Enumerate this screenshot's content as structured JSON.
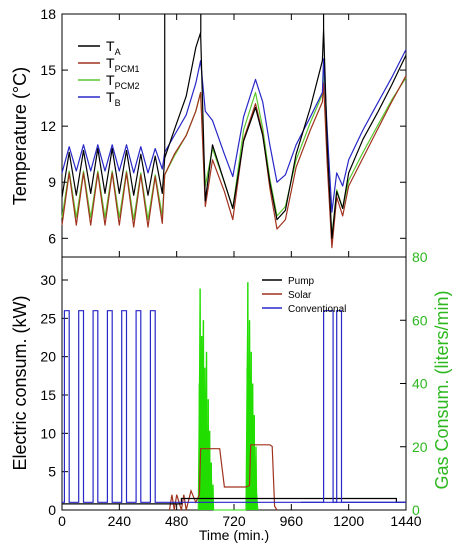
{
  "chart_data": [
    {
      "type": "line",
      "ylabel": "Temperature (°C)",
      "xlim": [
        0,
        1440
      ],
      "ylim": [
        5,
        18
      ],
      "yticks": [
        6,
        9,
        12,
        15,
        18
      ],
      "legend_position": "top-left",
      "colors": {
        "T_A": "#000000",
        "T_PCM1": "#a0321e",
        "T_PCM2": "#5ac82d",
        "T_B": "#2828c8"
      },
      "legend": [
        {
          "key": "T_A",
          "base": "T",
          "sub": "A"
        },
        {
          "key": "T_PCM1",
          "base": "T",
          "sub": "PCM1"
        },
        {
          "key": "T_PCM2",
          "base": "T",
          "sub": "PCM2"
        },
        {
          "key": "T_B",
          "base": "T",
          "sub": "B"
        }
      ],
      "series": {
        "T_A": {
          "x": [
            0,
            30,
            60,
            90,
            120,
            150,
            180,
            210,
            240,
            270,
            300,
            330,
            360,
            390,
            420,
            430,
            470,
            520,
            560,
            580,
            600,
            630,
            680,
            715,
            760,
            810,
            840,
            870,
            900,
            935,
            980,
            1040,
            1090,
            1095,
            1110,
            1130,
            1150,
            1175,
            1200,
            1260,
            1320,
            1380,
            1440
          ],
          "y": [
            8.2,
            10.6,
            8.3,
            10.7,
            8.4,
            10.8,
            8.4,
            10.8,
            8.4,
            10.7,
            8.3,
            10.5,
            8.3,
            10.4,
            8.4,
            10.3,
            11.8,
            13.6,
            16.2,
            17.0,
            8.0,
            11.0,
            9.0,
            7.6,
            11.2,
            13.0,
            11.5,
            9.0,
            7.0,
            7.5,
            10.5,
            13.0,
            15.5,
            17.2,
            11.0,
            6.0,
            8.5,
            7.6,
            9.5,
            11.3,
            12.7,
            14.2,
            15.8
          ]
        },
        "T_PCM1": {
          "x": [
            0,
            30,
            60,
            90,
            120,
            150,
            180,
            210,
            240,
            270,
            300,
            330,
            360,
            390,
            420,
            430,
            470,
            520,
            560,
            580,
            600,
            630,
            680,
            715,
            760,
            810,
            840,
            870,
            900,
            935,
            980,
            1040,
            1090,
            1095,
            1110,
            1130,
            1150,
            1175,
            1200,
            1260,
            1320,
            1380,
            1440
          ],
          "y": [
            6.7,
            9.5,
            6.7,
            9.5,
            6.7,
            9.5,
            6.7,
            9.5,
            6.7,
            9.5,
            6.6,
            9.4,
            6.6,
            9.3,
            6.8,
            9.4,
            10.5,
            11.5,
            12.8,
            13.8,
            7.7,
            10.2,
            8.5,
            7.0,
            11.3,
            13.2,
            11.6,
            8.7,
            6.5,
            7.0,
            9.8,
            11.8,
            13.3,
            14.3,
            10.0,
            5.5,
            8.2,
            7.2,
            8.8,
            10.3,
            11.8,
            13.3,
            14.7
          ]
        },
        "T_PCM2": {
          "x": [
            0,
            30,
            60,
            90,
            120,
            150,
            180,
            210,
            240,
            270,
            300,
            330,
            360,
            390,
            420,
            430,
            470,
            520,
            560,
            580,
            600,
            630,
            680,
            715,
            760,
            810,
            840,
            870,
            900,
            935,
            980,
            1040,
            1090,
            1095,
            1110,
            1130,
            1150,
            1175,
            1200,
            1260,
            1320,
            1380,
            1440
          ],
          "y": [
            7.1,
            9.6,
            7.1,
            9.6,
            7.1,
            9.6,
            7.1,
            9.6,
            7.1,
            9.6,
            7.0,
            9.5,
            7.0,
            9.4,
            7.2,
            9.4,
            10.4,
            11.5,
            12.8,
            13.8,
            8.8,
            10.8,
            9.0,
            7.6,
            11.8,
            13.8,
            11.9,
            9.2,
            7.2,
            7.7,
            10.2,
            12.2,
            13.7,
            14.8,
            10.4,
            6.1,
            8.6,
            7.6,
            9.1,
            10.6,
            12.0,
            13.4,
            14.6
          ]
        },
        "T_B": {
          "x": [
            0,
            30,
            60,
            90,
            120,
            150,
            180,
            210,
            240,
            270,
            300,
            330,
            360,
            390,
            420,
            430,
            470,
            520,
            560,
            580,
            600,
            630,
            680,
            715,
            760,
            810,
            840,
            870,
            900,
            935,
            980,
            1040,
            1090,
            1095,
            1110,
            1130,
            1150,
            1175,
            1200,
            1260,
            1320,
            1380,
            1440
          ],
          "y": [
            9.5,
            10.9,
            9.6,
            11.0,
            9.6,
            11.0,
            9.6,
            11.0,
            9.6,
            11.0,
            9.5,
            10.9,
            9.5,
            10.8,
            9.7,
            10.6,
            11.5,
            12.6,
            14.3,
            15.5,
            12.8,
            12.3,
            10.5,
            9.3,
            12.5,
            14.5,
            13.3,
            11.0,
            9.0,
            9.4,
            11.0,
            12.5,
            13.8,
            15.6,
            11.8,
            7.4,
            9.5,
            8.8,
            10.2,
            11.8,
            13.2,
            14.6,
            16.1
          ]
        }
      }
    },
    {
      "type": "line",
      "xlabel": "Time (min.)",
      "ylabel": "Electric consum. (kW)",
      "ylabel_right": "Gas Consum. (liters/min)",
      "xlim": [
        0,
        1440
      ],
      "ylim": [
        0,
        33
      ],
      "ylim_right": [
        0,
        80
      ],
      "xticks": [
        0,
        240,
        480,
        720,
        960,
        1200,
        1440
      ],
      "yticks": [
        0,
        5,
        10,
        15,
        20,
        25,
        30
      ],
      "yticks_right": [
        0,
        20,
        40,
        60,
        80
      ],
      "legend_position": "top-right",
      "colors": {
        "Pump": "#000000",
        "Solar": "#a0321e",
        "Conventional": "#2828c8",
        "Gas": "#22dd00"
      },
      "legend": [
        {
          "key": "Pump",
          "label": "Pump"
        },
        {
          "key": "Solar",
          "label": "Solar"
        },
        {
          "key": "Conventional",
          "label": "Conventional"
        }
      ],
      "series": {
        "Conventional": {
          "x": [
            0,
            10,
            10,
            30,
            30,
            70,
            70,
            90,
            90,
            130,
            130,
            150,
            150,
            190,
            190,
            210,
            210,
            250,
            250,
            270,
            270,
            310,
            310,
            330,
            330,
            370,
            370,
            390,
            390,
            1440
          ],
          "y": [
            1,
            1,
            26,
            26,
            1,
            1,
            26,
            26,
            1,
            1,
            26,
            26,
            1,
            1,
            26,
            26,
            1,
            1,
            26,
            26,
            1,
            1,
            26,
            26,
            1,
            1,
            26,
            26,
            1,
            1
          ]
        },
        "Conventional_b": {
          "x": [
            1000,
            1095,
            1095,
            1135,
            1135,
            1150,
            1150,
            1170,
            1170,
            1440
          ],
          "y": [
            1,
            1,
            26,
            26,
            1,
            1,
            26,
            26,
            1,
            1
          ]
        },
        "Pump": {
          "x": [
            0,
            500,
            500,
            1400,
            1400,
            1440
          ],
          "y": [
            0.8,
            0.8,
            1.5,
            1.5,
            1.0,
            1.0
          ]
        },
        "Solar": {
          "x": [
            450,
            460,
            470,
            480,
            500,
            510,
            520,
            540,
            560,
            575,
            580,
            600,
            620,
            660,
            680,
            700,
            720,
            740,
            770,
            785,
            790,
            800,
            820,
            850,
            870,
            880,
            890,
            900
          ],
          "y": [
            0,
            2,
            0,
            2,
            0,
            2,
            0,
            2.5,
            1.0,
            2.0,
            8.0,
            8.0,
            8.0,
            8.0,
            3.0,
            3.0,
            3.0,
            3.0,
            3.0,
            3.2,
            8.5,
            8.5,
            8.5,
            8.5,
            8.5,
            8.3,
            0.5,
            0
          ]
        },
        "Gas": {
          "x": [
            570,
            575,
            578,
            582,
            585,
            588,
            592,
            595,
            598,
            602,
            605,
            608,
            612,
            615,
            618,
            622,
            625,
            628,
            632,
            635,
            640,
            770,
            775,
            778,
            782,
            785,
            788,
            792,
            795,
            798,
            802,
            805,
            808,
            812,
            815,
            820
          ],
          "y": [
            0,
            40,
            70,
            10,
            55,
            30,
            60,
            5,
            45,
            20,
            50,
            2,
            35,
            10,
            25,
            0,
            15,
            3,
            8,
            0,
            0,
            0,
            45,
            72,
            5,
            60,
            25,
            50,
            5,
            40,
            18,
            30,
            2,
            20,
            5,
            0
          ]
        }
      }
    }
  ]
}
